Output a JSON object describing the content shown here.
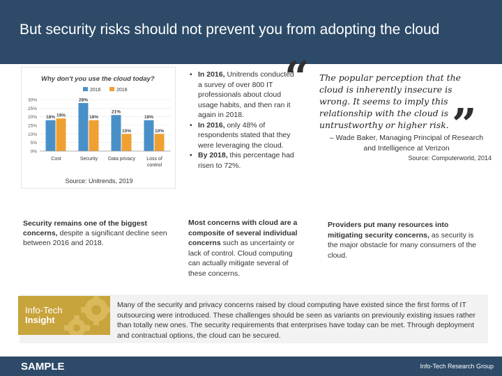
{
  "header": {
    "title": "But security risks should not prevent you from adopting the cloud"
  },
  "chart": {
    "source": "Source: Unitrends, 2019"
  },
  "chart_data": {
    "type": "bar",
    "title": "Why don't you use the cloud today?",
    "categories": [
      "Cost",
      "Security",
      "Data privacy",
      "Loss of control"
    ],
    "series": [
      {
        "name": "2016",
        "color": "#4a90c8",
        "values": [
          18,
          28,
          21,
          18
        ]
      },
      {
        "name": "2018",
        "color": "#f0a030",
        "values": [
          19,
          18,
          10,
          10
        ]
      }
    ],
    "data_labels": [
      [
        "18%",
        "28%",
        "21%",
        "18%"
      ],
      [
        "19%",
        "18%",
        "10%",
        "10%"
      ]
    ],
    "y_ticks": [
      "0%",
      "5%",
      "10%",
      "15%",
      "20%",
      "25%",
      "30%"
    ],
    "ylim": [
      0,
      30
    ],
    "legend": "top",
    "grid": true
  },
  "left_text": {
    "bold": "Security remains one of the biggest concerns,",
    "rest": " despite a significant decline seen between 2016 and 2018."
  },
  "bullets": [
    {
      "bold": "In 2016,",
      "rest": " Unitrends conducted a survey of over 800 IT professionals about cloud usage habits, and then ran it again in 2018."
    },
    {
      "bold": "In 2016,",
      "rest": " only 48% of respondents stated that they were leveraging the cloud."
    },
    {
      "bold": "By 2018,",
      "rest": " this percentage had risen to 72%."
    }
  ],
  "quote": {
    "open_mark": "“",
    "close_mark": "”",
    "text": "The popular perception that the cloud is inherently insecure is wrong. It seems to imply this relationship with the cloud is untrustworthy or higher risk.",
    "attribution": "– Wade Baker, Managing Principal of Research and Intelligence at Verizon",
    "source": "Source: Computerworld, 2014"
  },
  "mid_text": {
    "bold": "Most concerns with cloud are a composite of several individual concerns",
    "rest": " such as uncertainty or lack of control. Cloud computing can actually mitigate several of these concerns."
  },
  "right_text": {
    "bold": "Providers put many resources into mitigating security concerns,",
    "rest": " as security is the major obstacle for many consumers of the cloud."
  },
  "insight": {
    "brand": "Info-Tech",
    "label": "Insight",
    "text": "Many of the security and privacy concerns raised by cloud computing have existed since the first forms of IT outsourcing were introduced. These challenges should be seen as variants on previously existing issues rather than totally new ones. The security requirements that enterprises have today can be met. Through deployment and contractual options, the cloud can be secured."
  },
  "footer": {
    "sample": "SAMPLE",
    "brand": "Info-Tech Research Group"
  },
  "colors": {
    "header_bg": "#2d4a68",
    "insight_gold": "#c8a43c",
    "series_2016": "#4a90c8",
    "series_2018": "#f0a030"
  }
}
